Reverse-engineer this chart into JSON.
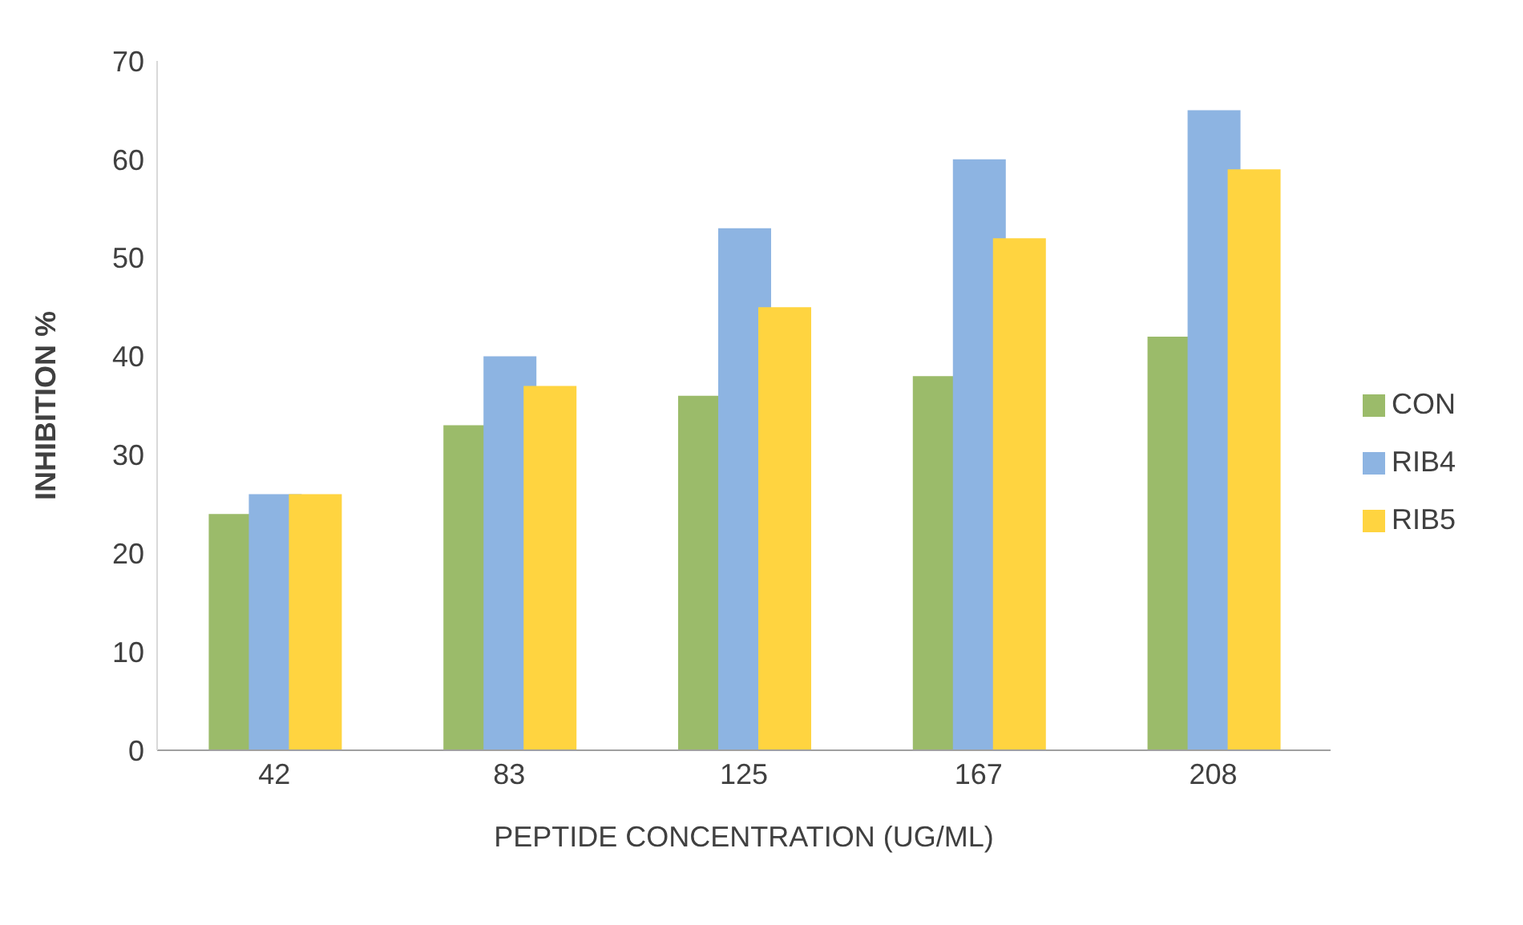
{
  "chart_data": {
    "type": "bar",
    "xlabel": "PEPTIDE CONCENTRATION (UG/ML)",
    "ylabel": "INHIBITION %",
    "categories": [
      "42",
      "83",
      "125",
      "167",
      "208"
    ],
    "series": [
      {
        "name": "CON",
        "color": "#9bbb6a",
        "values": [
          24,
          33,
          36,
          38,
          42
        ]
      },
      {
        "name": "RIB4",
        "color": "#8db4e2",
        "values": [
          26,
          40,
          53,
          60,
          65
        ]
      },
      {
        "name": "RIB5",
        "color": "#ffd440",
        "values": [
          26,
          37,
          45,
          52,
          59
        ]
      }
    ],
    "ylim": [
      0,
      70
    ],
    "yticks": [
      0,
      10,
      20,
      30,
      40,
      50,
      60,
      70
    ],
    "grid": false,
    "legend": "right"
  }
}
